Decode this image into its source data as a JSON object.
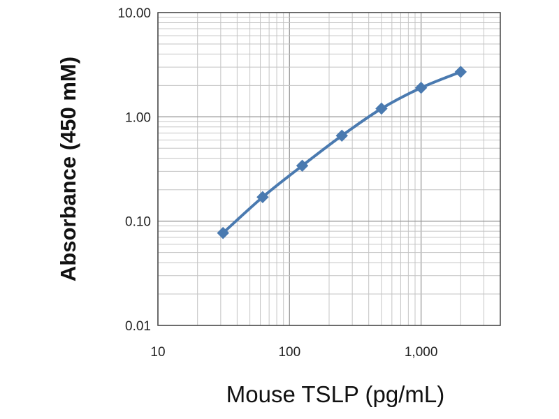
{
  "chart_data": {
    "type": "line",
    "title": "",
    "xlabel": "Mouse TSLP (pg/mL)",
    "ylabel": "Absorbance (450 mM)",
    "x_scale": "log",
    "y_scale": "log",
    "xlim": [
      10,
      4000
    ],
    "ylim": [
      0.01,
      10
    ],
    "x_ticks": [
      {
        "value": 10,
        "label": "10"
      },
      {
        "value": 100,
        "label": "100"
      },
      {
        "value": 1000,
        "label": "1,000"
      }
    ],
    "y_ticks": [
      {
        "value": 0.01,
        "label": "0.01"
      },
      {
        "value": 0.1,
        "label": "0.10"
      },
      {
        "value": 1,
        "label": "1.00"
      },
      {
        "value": 10,
        "label": "10.00"
      }
    ],
    "grid": true,
    "legend": "none",
    "series": [
      {
        "x": [
          31.25,
          62.5,
          125,
          250,
          500,
          1000,
          2000
        ],
        "y": [
          0.077,
          0.17,
          0.34,
          0.66,
          1.2,
          1.9,
          2.7
        ],
        "color": "#4a7ab0",
        "marker": "diamond",
        "smooth": true
      }
    ]
  }
}
